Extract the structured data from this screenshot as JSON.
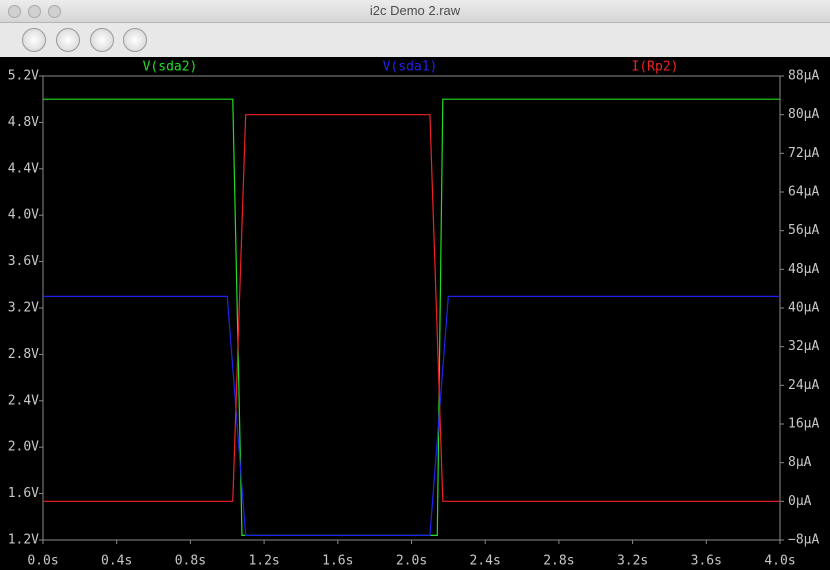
{
  "window": {
    "title": "i2c Demo 2.raw"
  },
  "chart_data": {
    "type": "line",
    "series": [
      {
        "name": "V(sda2)",
        "color": "#22dd22",
        "x": [
          0,
          1.03,
          1.08,
          2.14,
          2.17,
          4.0
        ],
        "values": [
          5.0,
          5.0,
          1.24,
          1.24,
          5.0,
          5.0
        ]
      },
      {
        "name": "V(sda1)",
        "color": "#2222ee",
        "x": [
          0,
          1.0,
          1.1,
          2.1,
          2.2,
          4.0
        ],
        "values": [
          3.3,
          3.3,
          1.24,
          1.24,
          3.3,
          3.3
        ]
      },
      {
        "name": "I(Rp2)",
        "color": "#ee2222",
        "axis": "y2",
        "x": [
          0,
          1.03,
          1.1,
          2.1,
          2.17,
          4.0
        ],
        "values": [
          0,
          0,
          80,
          80,
          0,
          0
        ]
      }
    ],
    "xlim": [
      0,
      4.0
    ],
    "xticks": [
      {
        "value": 0,
        "label": "0.0s"
      },
      {
        "value": 0.4,
        "label": "0.4s"
      },
      {
        "value": 0.8,
        "label": "0.8s"
      },
      {
        "value": 1.2,
        "label": "1.2s"
      },
      {
        "value": 1.6,
        "label": "1.6s"
      },
      {
        "value": 2.0,
        "label": "2.0s"
      },
      {
        "value": 2.4,
        "label": "2.4s"
      },
      {
        "value": 2.8,
        "label": "2.8s"
      },
      {
        "value": 3.2,
        "label": "3.2s"
      },
      {
        "value": 3.6,
        "label": "3.6s"
      },
      {
        "value": 4.0,
        "label": "4.0s"
      }
    ],
    "ylim": [
      1.2,
      5.2
    ],
    "yticks": [
      {
        "value": 1.2,
        "label": "1.2V"
      },
      {
        "value": 1.6,
        "label": "1.6V"
      },
      {
        "value": 2.0,
        "label": "2.0V"
      },
      {
        "value": 2.4,
        "label": "2.4V"
      },
      {
        "value": 2.8,
        "label": "2.8V"
      },
      {
        "value": 3.2,
        "label": "3.2V"
      },
      {
        "value": 3.6,
        "label": "3.6V"
      },
      {
        "value": 4.0,
        "label": "4.0V"
      },
      {
        "value": 4.4,
        "label": "4.4V"
      },
      {
        "value": 4.8,
        "label": "4.8V"
      },
      {
        "value": 5.2,
        "label": "5.2V"
      }
    ],
    "y2lim": [
      -8,
      88
    ],
    "y2ticks": [
      {
        "value": -8,
        "label": "−8µA"
      },
      {
        "value": 0,
        "label": "0µA"
      },
      {
        "value": 8,
        "label": "8µA"
      },
      {
        "value": 16,
        "label": "16µA"
      },
      {
        "value": 24,
        "label": "24µA"
      },
      {
        "value": 32,
        "label": "32µA"
      },
      {
        "value": 40,
        "label": "40µA"
      },
      {
        "value": 48,
        "label": "48µA"
      },
      {
        "value": 56,
        "label": "56µA"
      },
      {
        "value": 64,
        "label": "64µA"
      },
      {
        "value": 72,
        "label": "72µA"
      },
      {
        "value": 80,
        "label": "80µA"
      },
      {
        "value": 88,
        "label": "88µA"
      }
    ],
    "grid": false
  }
}
